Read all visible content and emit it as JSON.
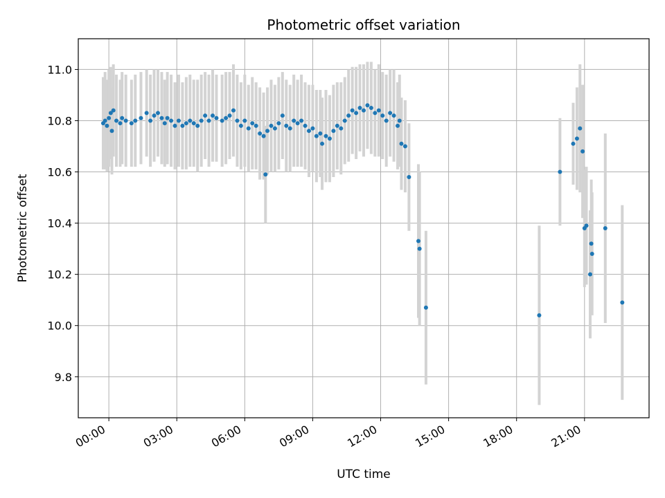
{
  "chart_data": {
    "type": "scatter",
    "title": "Photometric offset variation",
    "xlabel": "UTC time",
    "ylabel": "Photometric offset",
    "xlim_hours": [
      -1.35,
      23.85
    ],
    "ylim": [
      9.64,
      11.12
    ],
    "x_ticks": [
      "00:00",
      "03:00",
      "06:00",
      "09:00",
      "12:00",
      "15:00",
      "18:00",
      "21:00"
    ],
    "x_tick_hours": [
      0,
      3,
      6,
      9,
      12,
      15,
      18,
      21
    ],
    "y_ticks": [
      "9.8",
      "10.0",
      "10.2",
      "10.4",
      "10.6",
      "10.8",
      "11.0"
    ],
    "y_tick_values": [
      9.8,
      10.0,
      10.2,
      10.4,
      10.6,
      10.8,
      11.0
    ],
    "grid": true,
    "marker_color": "#1f77b4",
    "errorbar_color": "#d3d3d3",
    "points": [
      {
        "t": "23:45",
        "y": 10.79,
        "err": 0.18
      },
      {
        "t": "23:50",
        "y": 10.8,
        "err": 0.19
      },
      {
        "t": "23:55",
        "y": 10.78,
        "err": 0.18
      },
      {
        "t": "00:00",
        "y": 10.81,
        "err": 0.19
      },
      {
        "t": "00:05",
        "y": 10.83,
        "err": 0.18
      },
      {
        "t": "00:08",
        "y": 10.76,
        "err": 0.17
      },
      {
        "t": "00:12",
        "y": 10.84,
        "err": 0.18
      },
      {
        "t": "00:20",
        "y": 10.8,
        "err": 0.18
      },
      {
        "t": "00:30",
        "y": 10.79,
        "err": 0.17
      },
      {
        "t": "00:35",
        "y": 10.81,
        "err": 0.18
      },
      {
        "t": "00:45",
        "y": 10.8,
        "err": 0.18
      },
      {
        "t": "01:00",
        "y": 10.79,
        "err": 0.17
      },
      {
        "t": "01:10",
        "y": 10.8,
        "err": 0.18
      },
      {
        "t": "01:25",
        "y": 10.81,
        "err": 0.18
      },
      {
        "t": "01:40",
        "y": 10.83,
        "err": 0.17
      },
      {
        "t": "01:50",
        "y": 10.8,
        "err": 0.18
      },
      {
        "t": "02:00",
        "y": 10.82,
        "err": 0.18
      },
      {
        "t": "02:10",
        "y": 10.83,
        "err": 0.17
      },
      {
        "t": "02:20",
        "y": 10.81,
        "err": 0.18
      },
      {
        "t": "02:28",
        "y": 10.79,
        "err": 0.17
      },
      {
        "t": "02:35",
        "y": 10.81,
        "err": 0.18
      },
      {
        "t": "02:45",
        "y": 10.8,
        "err": 0.18
      },
      {
        "t": "02:55",
        "y": 10.78,
        "err": 0.17
      },
      {
        "t": "03:05",
        "y": 10.8,
        "err": 0.18
      },
      {
        "t": "03:15",
        "y": 10.78,
        "err": 0.17
      },
      {
        "t": "03:25",
        "y": 10.79,
        "err": 0.18
      },
      {
        "t": "03:35",
        "y": 10.8,
        "err": 0.18
      },
      {
        "t": "03:45",
        "y": 10.79,
        "err": 0.17
      },
      {
        "t": "03:55",
        "y": 10.78,
        "err": 0.18
      },
      {
        "t": "04:05",
        "y": 10.8,
        "err": 0.18
      },
      {
        "t": "04:15",
        "y": 10.82,
        "err": 0.17
      },
      {
        "t": "04:25",
        "y": 10.8,
        "err": 0.18
      },
      {
        "t": "04:35",
        "y": 10.82,
        "err": 0.18
      },
      {
        "t": "04:45",
        "y": 10.81,
        "err": 0.17
      },
      {
        "t": "05:00",
        "y": 10.8,
        "err": 0.18
      },
      {
        "t": "05:10",
        "y": 10.81,
        "err": 0.18
      },
      {
        "t": "05:20",
        "y": 10.82,
        "err": 0.17
      },
      {
        "t": "05:30",
        "y": 10.84,
        "err": 0.18
      },
      {
        "t": "05:40",
        "y": 10.8,
        "err": 0.18
      },
      {
        "t": "05:50",
        "y": 10.78,
        "err": 0.17
      },
      {
        "t": "06:00",
        "y": 10.8,
        "err": 0.18
      },
      {
        "t": "06:10",
        "y": 10.77,
        "err": 0.17
      },
      {
        "t": "06:20",
        "y": 10.79,
        "err": 0.18
      },
      {
        "t": "06:30",
        "y": 10.78,
        "err": 0.17
      },
      {
        "t": "06:40",
        "y": 10.75,
        "err": 0.18
      },
      {
        "t": "06:50",
        "y": 10.74,
        "err": 0.17
      },
      {
        "t": "06:55",
        "y": 10.59,
        "err": 0.19
      },
      {
        "t": "07:00",
        "y": 10.76,
        "err": 0.17
      },
      {
        "t": "07:10",
        "y": 10.78,
        "err": 0.18
      },
      {
        "t": "07:20",
        "y": 10.77,
        "err": 0.17
      },
      {
        "t": "07:30",
        "y": 10.79,
        "err": 0.18
      },
      {
        "t": "07:40",
        "y": 10.82,
        "err": 0.17
      },
      {
        "t": "07:50",
        "y": 10.78,
        "err": 0.18
      },
      {
        "t": "08:00",
        "y": 10.77,
        "err": 0.17
      },
      {
        "t": "08:10",
        "y": 10.8,
        "err": 0.18
      },
      {
        "t": "08:20",
        "y": 10.79,
        "err": 0.17
      },
      {
        "t": "08:30",
        "y": 10.8,
        "err": 0.18
      },
      {
        "t": "08:40",
        "y": 10.78,
        "err": 0.17
      },
      {
        "t": "08:50",
        "y": 10.76,
        "err": 0.18
      },
      {
        "t": "09:00",
        "y": 10.77,
        "err": 0.17
      },
      {
        "t": "09:10",
        "y": 10.74,
        "err": 0.18
      },
      {
        "t": "09:20",
        "y": 10.75,
        "err": 0.17
      },
      {
        "t": "09:25",
        "y": 10.71,
        "err": 0.18
      },
      {
        "t": "09:35",
        "y": 10.74,
        "err": 0.18
      },
      {
        "t": "09:45",
        "y": 10.73,
        "err": 0.17
      },
      {
        "t": "09:55",
        "y": 10.76,
        "err": 0.18
      },
      {
        "t": "10:05",
        "y": 10.78,
        "err": 0.17
      },
      {
        "t": "10:15",
        "y": 10.77,
        "err": 0.18
      },
      {
        "t": "10:25",
        "y": 10.8,
        "err": 0.17
      },
      {
        "t": "10:35",
        "y": 10.82,
        "err": 0.18
      },
      {
        "t": "10:45",
        "y": 10.84,
        "err": 0.17
      },
      {
        "t": "10:55",
        "y": 10.83,
        "err": 0.18
      },
      {
        "t": "11:05",
        "y": 10.85,
        "err": 0.17
      },
      {
        "t": "11:15",
        "y": 10.84,
        "err": 0.18
      },
      {
        "t": "11:25",
        "y": 10.86,
        "err": 0.17
      },
      {
        "t": "11:35",
        "y": 10.85,
        "err": 0.18
      },
      {
        "t": "11:45",
        "y": 10.83,
        "err": 0.17
      },
      {
        "t": "11:55",
        "y": 10.84,
        "err": 0.18
      },
      {
        "t": "12:05",
        "y": 10.82,
        "err": 0.17
      },
      {
        "t": "12:15",
        "y": 10.8,
        "err": 0.18
      },
      {
        "t": "12:25",
        "y": 10.83,
        "err": 0.17
      },
      {
        "t": "12:35",
        "y": 10.82,
        "err": 0.18
      },
      {
        "t": "12:45",
        "y": 10.78,
        "err": 0.17
      },
      {
        "t": "12:50",
        "y": 10.8,
        "err": 0.18
      },
      {
        "t": "12:55",
        "y": 10.71,
        "err": 0.18
      },
      {
        "t": "13:05",
        "y": 10.7,
        "err": 0.18
      },
      {
        "t": "13:15",
        "y": 10.58,
        "err": 0.21
      },
      {
        "t": "13:40",
        "y": 10.33,
        "err": 0.3
      },
      {
        "t": "13:43",
        "y": 10.3,
        "err": 0.3
      },
      {
        "t": "14:00",
        "y": 10.07,
        "err": 0.3
      },
      {
        "t": "19:00",
        "y": 10.04,
        "err": 0.35
      },
      {
        "t": "19:55",
        "y": 10.6,
        "err": 0.21
      },
      {
        "t": "20:30",
        "y": 10.71,
        "err": 0.16
      },
      {
        "t": "20:40",
        "y": 10.73,
        "err": 0.2
      },
      {
        "t": "20:48",
        "y": 10.77,
        "err": 0.25
      },
      {
        "t": "20:55",
        "y": 10.68,
        "err": 0.26
      },
      {
        "t": "21:00",
        "y": 10.38,
        "err": 0.23
      },
      {
        "t": "21:05",
        "y": 10.39,
        "err": 0.23
      },
      {
        "t": "21:15",
        "y": 10.2,
        "err": 0.25
      },
      {
        "t": "21:18",
        "y": 10.32,
        "err": 0.25
      },
      {
        "t": "21:20",
        "y": 10.28,
        "err": 0.24
      },
      {
        "t": "21:55",
        "y": 10.38,
        "err": 0.37
      },
      {
        "t": "22:40",
        "y": 10.09,
        "err": 0.38
      }
    ]
  }
}
